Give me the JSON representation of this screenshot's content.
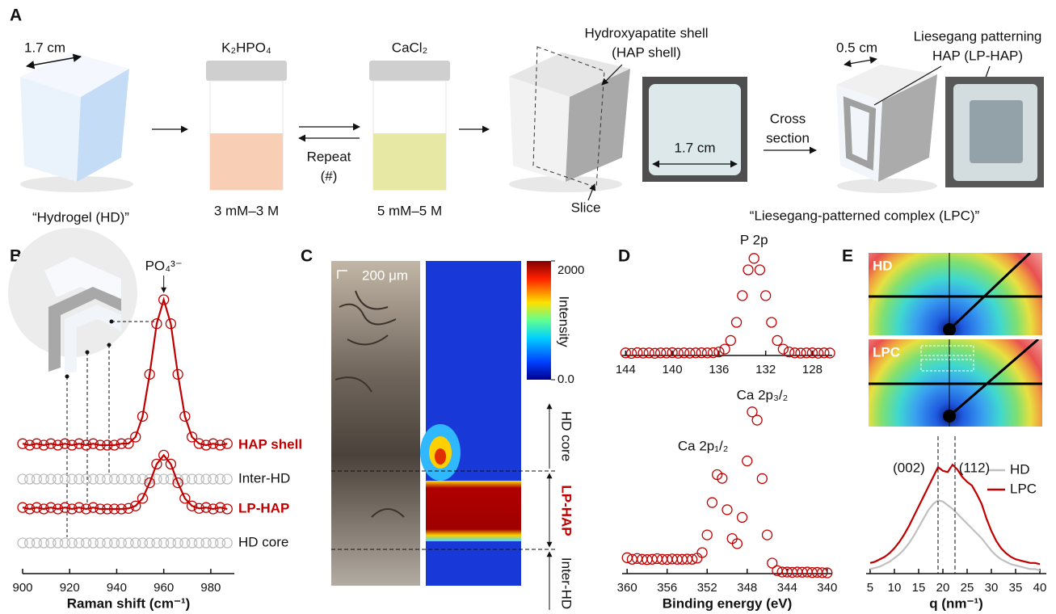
{
  "panel_labels": [
    "A",
    "B",
    "C",
    "D",
    "E"
  ],
  "schematic": {
    "hydrogel_size": "1.7 cm",
    "hydrogel": "“Hydrogel (HD)”",
    "solution_1": "K₂HPO₄",
    "concentration_1": "3 mM–3 M",
    "repeat": [
      "Repeat",
      "(#)"
    ],
    "solution_2": "CaCl₂",
    "concentration_2": "5 mM–5 M",
    "shell": [
      "Hydroxyapatite shell",
      "(HAP shell)"
    ],
    "slice": "Slice",
    "photo_size": "1.7 cm",
    "cross_section": [
      "Cross",
      "section"
    ],
    "pattern_size": "0.5 cm",
    "patterning": [
      "Liesegang patterning",
      "HAP (LP-HAP)"
    ],
    "complex": "“Liesegang-patterned complex (LPC)”"
  },
  "panel_c": {
    "scale_bar": "200 μm",
    "colorbar_title": "Intensity",
    "colorbar_lim": [
      0,
      2000
    ],
    "colorbar_ticks": [
      {
        "value": 0,
        "label": "0.0"
      },
      2000
    ],
    "regions": [
      "HD core",
      "LP-HAP",
      "Inter-HD"
    ]
  },
  "panel_e_images": [
    "HD",
    "LPC"
  ],
  "chart_data": [
    {
      "type": "spectra",
      "x_label": "Raman shift (cm⁻¹)",
      "xlim": [
        900,
        990
      ],
      "xticks": [
        900,
        920,
        940,
        960,
        980
      ],
      "annotations": [
        {
          "label": "PO₄³⁻",
          "x": 960
        }
      ],
      "x": [
        900,
        903,
        906,
        909,
        912,
        915,
        918,
        921,
        924,
        927,
        930,
        933,
        936,
        939,
        942,
        945,
        948,
        951,
        954,
        957,
        960,
        963,
        966,
        969,
        972,
        975,
        978,
        981,
        984,
        987
      ],
      "series": [
        {
          "name": "HAP shell",
          "color": "#c00000",
          "line": true,
          "values": [
            1,
            0,
            1,
            0,
            1,
            0,
            1,
            0,
            1,
            0,
            1,
            0,
            0,
            0,
            1,
            1.1,
            5.6,
            19.8,
            48.7,
            83.5,
            100,
            83.5,
            48.7,
            19.8,
            5.6,
            1.1,
            0,
            1,
            0,
            1
          ]
        },
        {
          "name": "Inter-HD",
          "color": "#bdbdbd",
          "line": false,
          "values": [
            0,
            0,
            0,
            0,
            0,
            0,
            0,
            0,
            0,
            0,
            0,
            0,
            0,
            0,
            0,
            0,
            0,
            0,
            0,
            0,
            0,
            0,
            0,
            0,
            0,
            0,
            0,
            0,
            0,
            0
          ]
        },
        {
          "name": "LP-HAP",
          "color": "#c00000",
          "line": true,
          "values": [
            1,
            0,
            1,
            0,
            1,
            0,
            1,
            0,
            1,
            0,
            1,
            0,
            0,
            0,
            0,
            0.4,
            2.1,
            7.3,
            18,
            30.9,
            37,
            30.9,
            18,
            7.3,
            2.1,
            0.4,
            1,
            0,
            1,
            0
          ]
        },
        {
          "name": "HD core",
          "color": "#bdbdbd",
          "line": false,
          "values": [
            0,
            0,
            0,
            0,
            0,
            0,
            0,
            0,
            0,
            0,
            0,
            0,
            0,
            0,
            0,
            0,
            0,
            0,
            0,
            0,
            0,
            0,
            0,
            0,
            0,
            0,
            0,
            0,
            0,
            0
          ]
        }
      ]
    },
    {
      "type": "scatter",
      "xlim": [
        144.3,
        126.3
      ],
      "xticks": [
        144,
        140,
        136,
        132,
        128
      ],
      "ylim": [
        0,
        110
      ],
      "annotations": [
        {
          "label": "P 2p",
          "x": 133
        }
      ],
      "x": [
        144,
        143.5,
        143,
        142.5,
        142,
        141.5,
        141,
        140.5,
        140,
        139.5,
        139,
        138.5,
        138,
        137.5,
        137,
        136.5,
        136,
        135.5,
        135,
        134.5,
        134,
        133.5,
        133,
        132.5,
        132,
        131.5,
        131,
        130.5,
        130,
        129.5,
        129,
        128.5,
        128,
        127.5,
        127,
        126.5
      ],
      "series": [
        {
          "color": "#c00000",
          "values": [
            1,
            0.5,
            1.2,
            0.8,
            1,
            0.6,
            1,
            0.9,
            1.2,
            0.7,
            1,
            0.8,
            1,
            1.1,
            1,
            1.2,
            2,
            5,
            14,
            33,
            61,
            88,
            100,
            88,
            61,
            33,
            14,
            5,
            2,
            1,
            0.8,
            1,
            1.1,
            0.7,
            1,
            0.9
          ]
        }
      ]
    },
    {
      "type": "scatter",
      "x_label": "Binding energy (eV)",
      "xlim": [
        360.5,
        339.5
      ],
      "xticks": [
        360,
        356,
        352,
        348,
        344,
        340
      ],
      "ylim": [
        0,
        110
      ],
      "annotations": [
        {
          "label": "Ca 2p₃/₂",
          "x": 347.3
        },
        {
          "label": "Ca 2p₁/₂",
          "x": 350.8
        }
      ],
      "x": [
        360,
        359.5,
        359,
        358.5,
        358,
        357.5,
        357,
        356.5,
        356,
        355.5,
        355,
        354.5,
        354,
        353.5,
        353,
        352.5,
        352,
        351.5,
        351,
        350.5,
        350,
        349.5,
        349,
        348.5,
        348,
        347.5,
        347,
        346.5,
        346,
        345.5,
        345,
        344.5,
        344,
        343.5,
        343,
        342.5,
        342,
        341.5,
        341,
        340.5,
        340
      ],
      "series": [
        {
          "color": "#c00000",
          "values": [
            11,
            10,
            10.5,
            10,
            9.8,
            10,
            10.4,
            10,
            9.9,
            10.2,
            10,
            10,
            10.1,
            10,
            10.7,
            14.2,
            25.3,
            45.6,
            63.1,
            60.8,
            41.1,
            23,
            19.8,
            36.3,
            71.7,
            102.5,
            97.3,
            60.6,
            25.3,
            7.6,
            2.9,
            2,
            2,
            1.8,
            2,
            1.9,
            2,
            1.7,
            1.8,
            1.6,
            1.5
          ]
        }
      ]
    },
    {
      "type": "line",
      "x_label": "q (nm⁻¹)",
      "xlim": [
        4.17,
        41.33
      ],
      "xticks": [
        5,
        10,
        15,
        20,
        25,
        30,
        35,
        40
      ],
      "ylim": [
        0,
        100
      ],
      "annotations": [
        {
          "label": "(002)",
          "x": 19
        },
        {
          "label": "(112)",
          "x": 22.5
        }
      ],
      "x": [
        5,
        6,
        7,
        8,
        9,
        10,
        11,
        12,
        13,
        14,
        15,
        16,
        17,
        18,
        19,
        20,
        21,
        22,
        23,
        24,
        25,
        26,
        27,
        28,
        29,
        30,
        31,
        32,
        33,
        34,
        35,
        36,
        37,
        38,
        39,
        40
      ],
      "series": [
        {
          "name": "HD",
          "color": "#c0c0c0",
          "values": [
            5,
            6,
            7,
            9,
            11,
            14,
            17,
            21,
            26,
            32,
            39,
            46,
            53,
            58,
            61,
            60,
            57,
            54,
            50,
            46,
            42,
            38,
            34,
            30,
            25,
            20,
            16,
            13,
            11,
            9,
            8,
            7,
            6,
            5,
            5,
            4
          ]
        },
        {
          "name": "LPC",
          "color": "#c00000",
          "values": [
            10,
            11,
            13,
            15,
            18,
            22,
            27,
            33,
            40,
            48,
            56,
            64,
            72,
            80,
            88,
            85,
            84,
            90,
            86,
            80,
            76,
            73,
            66,
            58,
            46,
            36,
            28,
            22,
            18,
            15,
            13,
            12,
            11,
            10,
            10,
            9
          ]
        }
      ]
    }
  ]
}
